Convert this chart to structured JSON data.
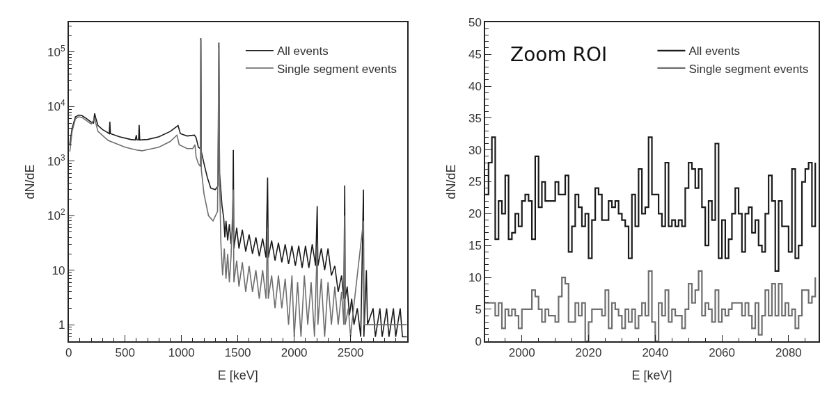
{
  "chart_data": [
    {
      "type": "line",
      "xlabel": "E [keV]",
      "ylabel": "dN/dE",
      "log": "y",
      "xlim": [
        0,
        3000
      ],
      "xticks": [
        0,
        500,
        1000,
        1500,
        2000,
        2500
      ],
      "ylim": [
        0.5,
        350000
      ],
      "yticks": [
        1,
        10,
        {
          "value": 100,
          "label": "10$^{2}$"
        },
        {
          "value": 1000,
          "label": "10$^{3}$"
        },
        {
          "value": 10000,
          "label": "10$^{4}$"
        },
        {
          "value": 100000,
          "label": "10$^{5}$"
        }
      ],
      "grid": false,
      "legend": "top right",
      "line_style": "solid",
      "marker": "none",
      "series": [
        {
          "name": "All events",
          "color": "#1a1a1a",
          "x": [
            10,
            30,
            60,
            90,
            120,
            160,
            200,
            220,
            230,
            240,
            260,
            300,
            340,
            360,
            365,
            370,
            450,
            550,
            590,
            600,
            605,
            620,
            625,
            630,
            700,
            800,
            900,
            970,
            990,
            1050,
            1115,
            1130,
            1150,
            1168,
            1172,
            1176,
            1200,
            1230,
            1260,
            1300,
            1325,
            1332,
            1338,
            1360,
            1375,
            1385,
            1395,
            1410,
            1425,
            1440,
            1455,
            1460,
            1465,
            1490,
            1510,
            1540,
            1570,
            1600,
            1630,
            1660,
            1690,
            1720,
            1750,
            1764,
            1770,
            1800,
            1830,
            1860,
            1890,
            1920,
            1950,
            1980,
            2010,
            2040,
            2070,
            2100,
            2130,
            2160,
            2190,
            2204,
            2210,
            2240,
            2270,
            2300,
            2330,
            2360,
            2390,
            2420,
            2440,
            2448,
            2452,
            2470,
            2490,
            2510,
            2530,
            2560,
            2590,
            2614,
            2618,
            2640,
            2650,
            2700,
            2720,
            2760,
            2780,
            2820,
            2840,
            2880,
            2900,
            2940,
            2960,
            3000
          ],
          "values": [
            2000,
            4000,
            6500,
            7000,
            6800,
            6000,
            5200,
            5000,
            7500,
            6200,
            4500,
            3800,
            3400,
            3200,
            5300,
            3200,
            2800,
            2500,
            2450,
            3000,
            2450,
            2450,
            4600,
            2450,
            2500,
            2800,
            3500,
            4500,
            3200,
            2900,
            3000,
            2700,
            1800,
            1700,
            180000,
            1500,
            900,
            500,
            320,
            300,
            350,
            150000,
            600,
            150,
            90,
            40,
            80,
            35,
            70,
            30,
            60,
            1600,
            25,
            60,
            25,
            55,
            22,
            45,
            20,
            40,
            18,
            38,
            17,
            500,
            17,
            35,
            15,
            32,
            14,
            30,
            13,
            28,
            12,
            28,
            11,
            28,
            11,
            30,
            12,
            150,
            12,
            25,
            10,
            25,
            8,
            12,
            4,
            8,
            3,
            360,
            3,
            5,
            1.5,
            3,
            1,
            2,
            0.6,
            300,
            0.6,
            10,
            1,
            2,
            0.6,
            2,
            0.6,
            2,
            0.6,
            2,
            0.6,
            2,
            0.6,
            0.6
          ]
        },
        {
          "name": "Single segment events",
          "color": "#6e6e6e",
          "x": [
            10,
            30,
            60,
            90,
            120,
            200,
            230,
            260,
            350,
            500,
            600,
            650,
            800,
            900,
            960,
            980,
            1050,
            1100,
            1120,
            1130,
            1150,
            1168,
            1172,
            1176,
            1200,
            1240,
            1280,
            1320,
            1332,
            1338,
            1350,
            1365,
            1380,
            1395,
            1410,
            1425,
            1440,
            1460,
            1465,
            1490,
            1510,
            1540,
            1570,
            1600,
            1630,
            1660,
            1690,
            1720,
            1750,
            1764,
            1770,
            1800,
            1830,
            1860,
            1890,
            1920,
            1950,
            1980,
            2000,
            2030,
            2060,
            2090,
            2120,
            2150,
            2180,
            2204,
            2210,
            2240,
            2270,
            2300,
            2330,
            2360,
            2390,
            2420,
            2440,
            2448,
            2452,
            2480,
            2500,
            2510,
            2614,
            2618,
            3000
          ],
          "values": [
            1500,
            3500,
            6000,
            6500,
            6300,
            4800,
            6000,
            3500,
            2400,
            1800,
            1600,
            1550,
            1800,
            2300,
            3000,
            2000,
            1700,
            1700,
            2000,
            1200,
            900,
            800,
            170000,
            700,
            250,
            100,
            80,
            120,
            120000,
            500,
            30,
            8,
            25,
            7,
            20,
            6,
            18,
            300,
            6,
            15,
            5,
            14,
            4,
            12,
            4,
            10,
            3,
            10,
            3,
            60,
            3,
            8,
            2,
            8,
            2,
            7,
            1,
            8,
            0.6,
            6,
            0.6,
            8,
            1,
            6,
            0.6,
            30,
            1,
            7,
            0.6,
            6,
            1,
            5,
            1,
            4,
            1,
            100,
            1,
            2,
            0.6,
            1,
            80,
            1,
            1
          ]
        }
      ]
    },
    {
      "type": "step",
      "xlabel": "E [keV]",
      "ylabel": "dN/dE",
      "xlim": [
        1989,
        2089
      ],
      "xticks": [
        2000,
        2020,
        2040,
        2060,
        2080
      ],
      "ylim": [
        0,
        50
      ],
      "yticks": [
        0,
        5,
        10,
        15,
        20,
        25,
        30,
        35,
        40,
        45,
        50
      ],
      "grid": false,
      "legend": "top right",
      "line_style": "solid",
      "marker": "none",
      "annotations": [
        "Zoom ROI"
      ],
      "x": [
        1989,
        1990,
        1991,
        1992,
        1993,
        1994,
        1995,
        1996,
        1997,
        1998,
        1999,
        2000,
        2001,
        2002,
        2003,
        2004,
        2005,
        2006,
        2007,
        2008,
        2009,
        2010,
        2011,
        2012,
        2013,
        2014,
        2015,
        2016,
        2017,
        2018,
        2019,
        2020,
        2021,
        2022,
        2023,
        2024,
        2025,
        2026,
        2027,
        2028,
        2029,
        2030,
        2031,
        2032,
        2033,
        2034,
        2035,
        2036,
        2037,
        2038,
        2039,
        2040,
        2041,
        2042,
        2043,
        2044,
        2045,
        2046,
        2047,
        2048,
        2049,
        2050,
        2051,
        2052,
        2053,
        2054,
        2055,
        2056,
        2057,
        2058,
        2059,
        2060,
        2061,
        2062,
        2063,
        2064,
        2065,
        2066,
        2067,
        2068,
        2069,
        2070,
        2071,
        2072,
        2073,
        2074,
        2075,
        2076,
        2077,
        2078,
        2079,
        2080,
        2081,
        2082,
        2083,
        2084,
        2085,
        2086,
        2087,
        2088
      ],
      "series": [
        {
          "name": "All events",
          "color": "#1a1a1a",
          "values": [
            23,
            28,
            32,
            16,
            22,
            20,
            26,
            16,
            17,
            20,
            18,
            22,
            23,
            22,
            16,
            29,
            21,
            25,
            22,
            22,
            22,
            25,
            23,
            23,
            26,
            14,
            18,
            23,
            21,
            18,
            20,
            13,
            19,
            24,
            23,
            19,
            19,
            22,
            21,
            22,
            20,
            19,
            18,
            13,
            23,
            18,
            27,
            20,
            21,
            32,
            23,
            23,
            20,
            18,
            28,
            18,
            19,
            18,
            19,
            18,
            24,
            28,
            27,
            24,
            27,
            21,
            15,
            22,
            19,
            31,
            13,
            19,
            13,
            16,
            20,
            24,
            20,
            14,
            20,
            21,
            17,
            19,
            15,
            14,
            20,
            26,
            22,
            11,
            22,
            18,
            18,
            14,
            27,
            13,
            15,
            25,
            27,
            28,
            18,
            28
          ]
        },
        {
          "name": "Single segment events",
          "color": "#6e6e6e",
          "values": [
            6,
            6,
            6,
            4,
            6,
            2,
            5,
            4,
            5,
            4,
            2,
            5,
            5,
            5,
            8,
            7,
            5,
            3,
            5,
            4,
            4,
            3,
            7,
            10,
            9,
            3,
            3,
            6,
            4,
            6,
            0,
            3,
            5,
            5,
            5,
            4,
            8,
            2,
            6,
            5,
            4,
            2,
            5,
            3,
            5,
            2,
            4,
            6,
            4,
            11,
            3,
            0,
            6,
            4,
            8,
            3,
            5,
            4,
            4,
            2,
            5,
            9,
            6,
            8,
            11,
            4,
            6,
            5,
            3,
            8,
            3,
            5,
            4,
            5,
            6,
            6,
            6,
            4,
            6,
            4,
            2,
            6,
            1,
            4,
            8,
            4,
            9,
            4,
            9,
            4,
            6,
            4,
            5,
            2,
            4,
            8,
            8,
            6,
            7,
            10
          ]
        }
      ]
    }
  ]
}
